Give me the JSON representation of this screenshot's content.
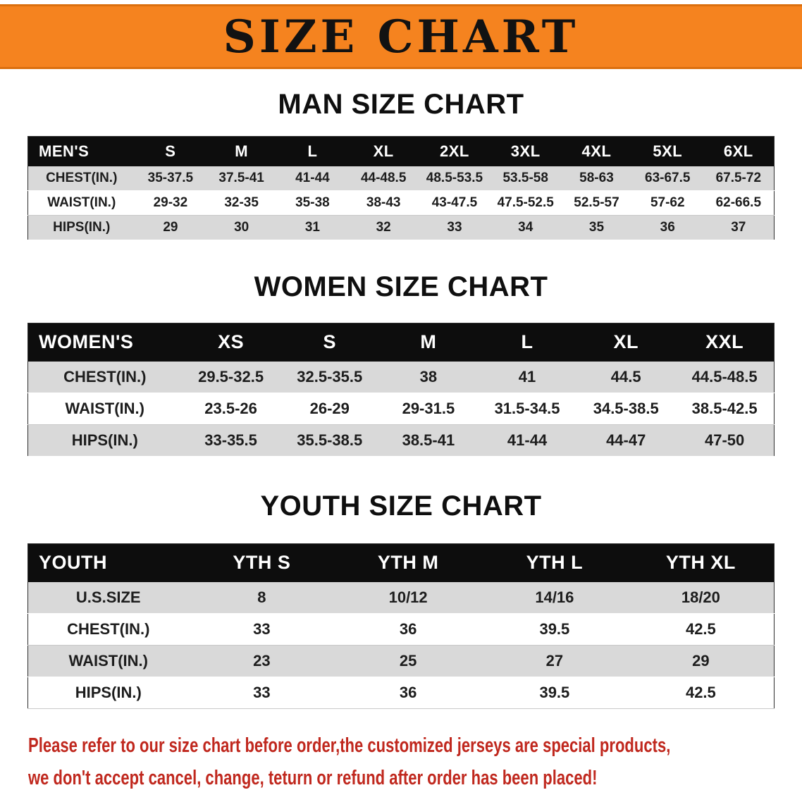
{
  "banner": {
    "title": "SIZE CHART"
  },
  "colors": {
    "banner_bg": "#F5831F",
    "banner_edge": "#DB6F0E",
    "table_header_bg": "#0D0D0D",
    "row_stripe": "#D9D9D9",
    "notice_text": "#C0281E"
  },
  "sections": {
    "men": {
      "heading": "MAN SIZE CHART",
      "table": {
        "header": [
          "MEN'S",
          "S",
          "M",
          "L",
          "XL",
          "2XL",
          "3XL",
          "4XL",
          "5XL",
          "6XL"
        ],
        "rows": [
          [
            "CHEST(IN.)",
            "35-37.5",
            "37.5-41",
            "41-44",
            "44-48.5",
            "48.5-53.5",
            "53.5-58",
            "58-63",
            "63-67.5",
            "67.5-72"
          ],
          [
            "WAIST(IN.)",
            "29-32",
            "32-35",
            "35-38",
            "38-43",
            "43-47.5",
            "47.5-52.5",
            "52.5-57",
            "57-62",
            "62-66.5"
          ],
          [
            "HIPS(IN.)",
            "29",
            "30",
            "31",
            "32",
            "33",
            "34",
            "35",
            "36",
            "37"
          ]
        ]
      }
    },
    "women": {
      "heading": "WOMEN SIZE CHART",
      "table": {
        "header": [
          "WOMEN'S",
          "XS",
          "S",
          "M",
          "L",
          "XL",
          "XXL"
        ],
        "rows": [
          [
            "CHEST(IN.)",
            "29.5-32.5",
            "32.5-35.5",
            "38",
            "41",
            "44.5",
            "44.5-48.5"
          ],
          [
            "WAIST(IN.)",
            "23.5-26",
            "26-29",
            "29-31.5",
            "31.5-34.5",
            "34.5-38.5",
            "38.5-42.5"
          ],
          [
            "HIPS(IN.)",
            "33-35.5",
            "35.5-38.5",
            "38.5-41",
            "41-44",
            "44-47",
            "47-50"
          ]
        ]
      }
    },
    "youth": {
      "heading": "YOUTH SIZE CHART",
      "table": {
        "header": [
          "YOUTH",
          "YTH S",
          "YTH M",
          "YTH L",
          "YTH XL"
        ],
        "rows": [
          [
            "U.S.SIZE",
            "8",
            "10/12",
            "14/16",
            "18/20"
          ],
          [
            "CHEST(IN.)",
            "33",
            "36",
            "39.5",
            "42.5"
          ],
          [
            "WAIST(IN.)",
            "23",
            "25",
            "27",
            "29"
          ],
          [
            "HIPS(IN.)",
            "33",
            "36",
            "39.5",
            "42.5"
          ]
        ]
      }
    }
  },
  "notice": {
    "lines": [
      "Please refer to our size chart before order,the customized jerseys are special products,",
      "we don't accept cancel, change, teturn or refund after order has been placed!"
    ]
  }
}
